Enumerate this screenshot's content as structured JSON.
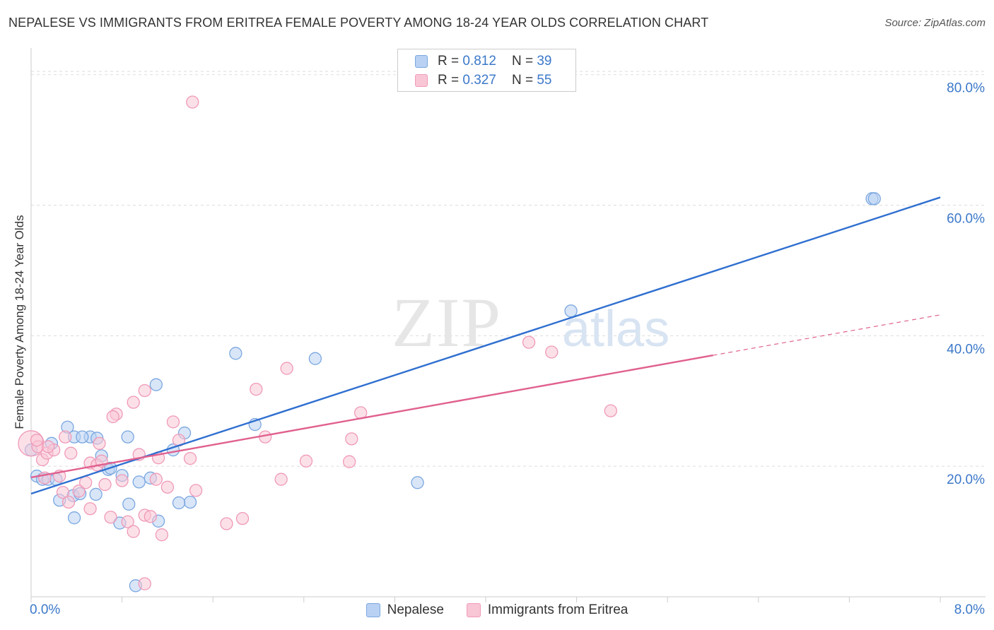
{
  "chart_data": {
    "type": "scatter",
    "title": "NEPALESE VS IMMIGRANTS FROM ERITREA FEMALE POVERTY AMONG 18-24 YEAR OLDS CORRELATION CHART",
    "source": "Source: ZipAtlas.com",
    "ylabel": "Female Poverty Among 18-24 Year Olds",
    "xlabel": "",
    "xlim": [
      0,
      8
    ],
    "ylim": [
      0,
      83
    ],
    "x_tick_labels": [
      {
        "value": 0,
        "label": "0.0%"
      },
      {
        "value": 8,
        "label": "8.0%"
      }
    ],
    "y_tick_labels": [
      {
        "value": 20,
        "label": "20.0%"
      },
      {
        "value": 40,
        "label": "40.0%"
      },
      {
        "value": 60,
        "label": "60.0%"
      },
      {
        "value": 80,
        "label": "80.0%"
      }
    ],
    "grid": true,
    "watermark": "ZIPatlas",
    "legend": {
      "placement": "top-center",
      "entries": [
        {
          "r_label": "R =",
          "r_value": "0.812",
          "n_label": "N =",
          "n_value": "39"
        },
        {
          "r_label": "R =",
          "r_value": "0.327",
          "n_label": "N =",
          "n_value": "55"
        }
      ]
    },
    "series": [
      {
        "name": "Nepalese",
        "color": "#7aa7e0",
        "fill": "#b9d1f2",
        "line_color": "#2f6fd0",
        "trend": {
          "x": [
            0.0,
            8.0
          ],
          "y": [
            15.8,
            61.2
          ]
        },
        "points": [
          [
            0.05,
            18.5
          ],
          [
            0.1,
            18.0
          ],
          [
            0.15,
            18.0
          ],
          [
            0.22,
            18.0
          ],
          [
            0.0,
            22.5
          ],
          [
            0.18,
            23.5
          ],
          [
            0.32,
            26.0
          ],
          [
            0.38,
            24.5
          ],
          [
            0.52,
            24.5
          ],
          [
            0.58,
            24.3
          ],
          [
            0.62,
            21.6
          ],
          [
            0.68,
            19.5
          ],
          [
            0.7,
            19.7
          ],
          [
            0.8,
            18.6
          ],
          [
            0.85,
            24.5
          ],
          [
            0.95,
            17.6
          ],
          [
            1.05,
            18.2
          ],
          [
            1.12,
            11.6
          ],
          [
            1.25,
            22.5
          ],
          [
            1.35,
            25.1
          ],
          [
            1.4,
            14.5
          ],
          [
            1.3,
            14.4
          ],
          [
            0.78,
            11.3
          ],
          [
            0.86,
            14.2
          ],
          [
            0.37,
            15.5
          ],
          [
            0.43,
            15.8
          ],
          [
            0.25,
            14.8
          ],
          [
            0.38,
            12.1
          ],
          [
            0.57,
            15.7
          ],
          [
            1.1,
            32.5
          ],
          [
            1.8,
            37.3
          ],
          [
            1.97,
            26.4
          ],
          [
            2.5,
            36.5
          ],
          [
            3.4,
            17.5
          ],
          [
            4.75,
            43.8
          ],
          [
            7.4,
            61.0
          ],
          [
            7.42,
            61.0
          ],
          [
            0.92,
            1.7
          ],
          [
            0.45,
            24.5
          ]
        ]
      },
      {
        "name": "Immigrants from Eritrea",
        "color": "#ef9ab8",
        "fill": "#f9c6d6",
        "line_color": "#e0608e",
        "trend": {
          "x": [
            0.0,
            6.0
          ],
          "y": [
            18.3,
            37.0
          ]
        },
        "trend_dashed": {
          "x": [
            6.0,
            8.0
          ],
          "y": [
            37.0,
            43.2
          ]
        },
        "points": [
          [
            0.0,
            23.5
          ],
          [
            0.06,
            23.0
          ],
          [
            0.1,
            21.0
          ],
          [
            0.14,
            22.0
          ],
          [
            0.2,
            22.5
          ],
          [
            0.12,
            18.2
          ],
          [
            0.25,
            18.5
          ],
          [
            0.28,
            16.0
          ],
          [
            0.33,
            14.5
          ],
          [
            0.42,
            16.2
          ],
          [
            0.48,
            17.5
          ],
          [
            0.52,
            20.5
          ],
          [
            0.58,
            20.2
          ],
          [
            0.62,
            20.8
          ],
          [
            0.65,
            17.2
          ],
          [
            0.7,
            12.2
          ],
          [
            0.75,
            28.0
          ],
          [
            0.8,
            17.8
          ],
          [
            0.85,
            11.5
          ],
          [
            0.9,
            10.0
          ],
          [
            0.95,
            21.8
          ],
          [
            1.0,
            12.5
          ],
          [
            1.05,
            12.3
          ],
          [
            1.1,
            18.0
          ],
          [
            1.15,
            9.5
          ],
          [
            1.2,
            16.8
          ],
          [
            1.25,
            26.8
          ],
          [
            1.3,
            24.0
          ],
          [
            1.4,
            21.2
          ],
          [
            1.45,
            16.3
          ],
          [
            0.52,
            13.5
          ],
          [
            0.3,
            24.5
          ],
          [
            0.72,
            27.6
          ],
          [
            0.9,
            29.8
          ],
          [
            1.0,
            31.6
          ],
          [
            1.12,
            21.3
          ],
          [
            1.72,
            11.2
          ],
          [
            1.86,
            12.0
          ],
          [
            1.98,
            31.8
          ],
          [
            2.06,
            24.5
          ],
          [
            2.2,
            18.0
          ],
          [
            2.25,
            35.0
          ],
          [
            2.42,
            20.8
          ],
          [
            2.8,
            20.7
          ],
          [
            2.82,
            24.2
          ],
          [
            2.9,
            28.2
          ],
          [
            4.38,
            39.0
          ],
          [
            4.58,
            37.5
          ],
          [
            5.1,
            28.5
          ],
          [
            1.0,
            2.0
          ],
          [
            1.42,
            75.8
          ],
          [
            0.15,
            23.0
          ],
          [
            0.05,
            24.0
          ],
          [
            0.6,
            23.5
          ],
          [
            0.35,
            22.0
          ]
        ]
      }
    ]
  }
}
